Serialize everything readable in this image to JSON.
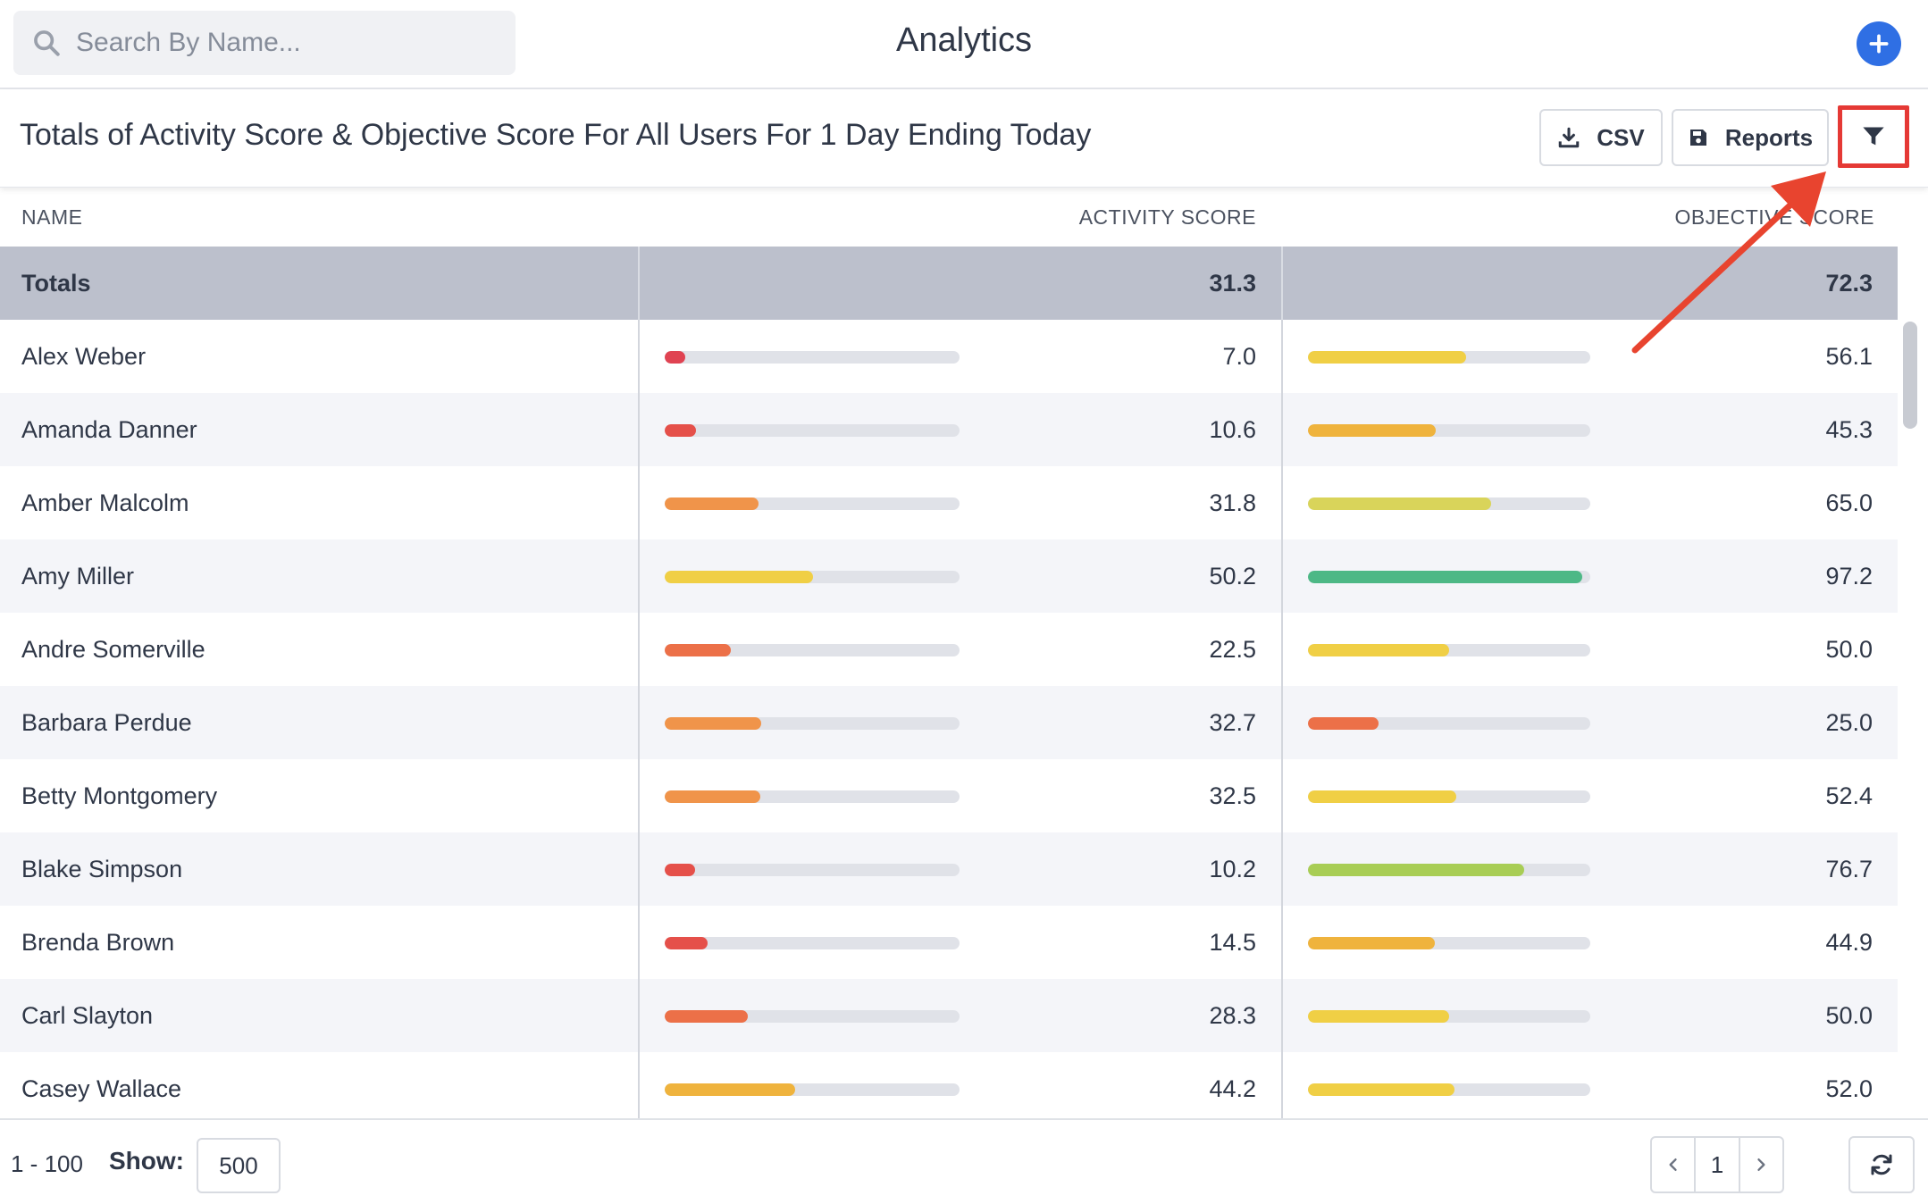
{
  "header": {
    "search_placeholder": "Search By Name...",
    "title": "Analytics",
    "add_icon": "plus-icon",
    "accent_color": "#2f6fe4"
  },
  "report": {
    "title": "Totals of Activity Score & Objective Score For All Users For 1 Day Ending Today",
    "csv_label": "CSV",
    "reports_label": "Reports",
    "filter_icon": "filter-icon",
    "highlight_color": "#e53935"
  },
  "table": {
    "columns": [
      "NAME",
      "ACTIVITY SCORE",
      "OBJECTIVE SCORE"
    ],
    "totals": {
      "name": "Totals",
      "activity": "31.3",
      "objective": "72.3"
    },
    "rows": [
      {
        "name": "Alex Weber",
        "activity": "7.0",
        "objective": "56.1",
        "activity_color": "#e04352",
        "objective_color": "#f0cf45"
      },
      {
        "name": "Amanda Danner",
        "activity": "10.6",
        "objective": "45.3",
        "activity_color": "#e5504a",
        "objective_color": "#efb33d"
      },
      {
        "name": "Amber Malcolm",
        "activity": "31.8",
        "objective": "65.0",
        "activity_color": "#f0944a",
        "objective_color": "#d9d45a"
      },
      {
        "name": "Amy Miller",
        "activity": "50.2",
        "objective": "97.2",
        "activity_color": "#f0cf45",
        "objective_color": "#4db886"
      },
      {
        "name": "Andre Somerville",
        "activity": "22.5",
        "objective": "50.0",
        "activity_color": "#ec7048",
        "objective_color": "#f0cf45"
      },
      {
        "name": "Barbara Perdue",
        "activity": "32.7",
        "objective": "25.0",
        "activity_color": "#f0944a",
        "objective_color": "#ec7048"
      },
      {
        "name": "Betty Montgomery",
        "activity": "32.5",
        "objective": "52.4",
        "activity_color": "#f0944a",
        "objective_color": "#f0cf45"
      },
      {
        "name": "Blake Simpson",
        "activity": "10.2",
        "objective": "76.7",
        "activity_color": "#e5504a",
        "objective_color": "#a8cd55"
      },
      {
        "name": "Brenda Brown",
        "activity": "14.5",
        "objective": "44.9",
        "activity_color": "#e5504a",
        "objective_color": "#efb33d"
      },
      {
        "name": "Carl Slayton",
        "activity": "28.3",
        "objective": "50.0",
        "activity_color": "#ec7048",
        "objective_color": "#f0cf45"
      },
      {
        "name": "Casey Wallace",
        "activity": "44.2",
        "objective": "52.0",
        "activity_color": "#efb33d",
        "objective_color": "#f0cf45"
      }
    ],
    "activity_max": 100,
    "objective_max": 100
  },
  "footer": {
    "range": "1 - 100",
    "show_label": "Show:",
    "show_value": "500",
    "page": "1",
    "prev_icon": "chevron-left-icon",
    "next_icon": "chevron-right-icon",
    "refresh_icon": "refresh-icon"
  }
}
